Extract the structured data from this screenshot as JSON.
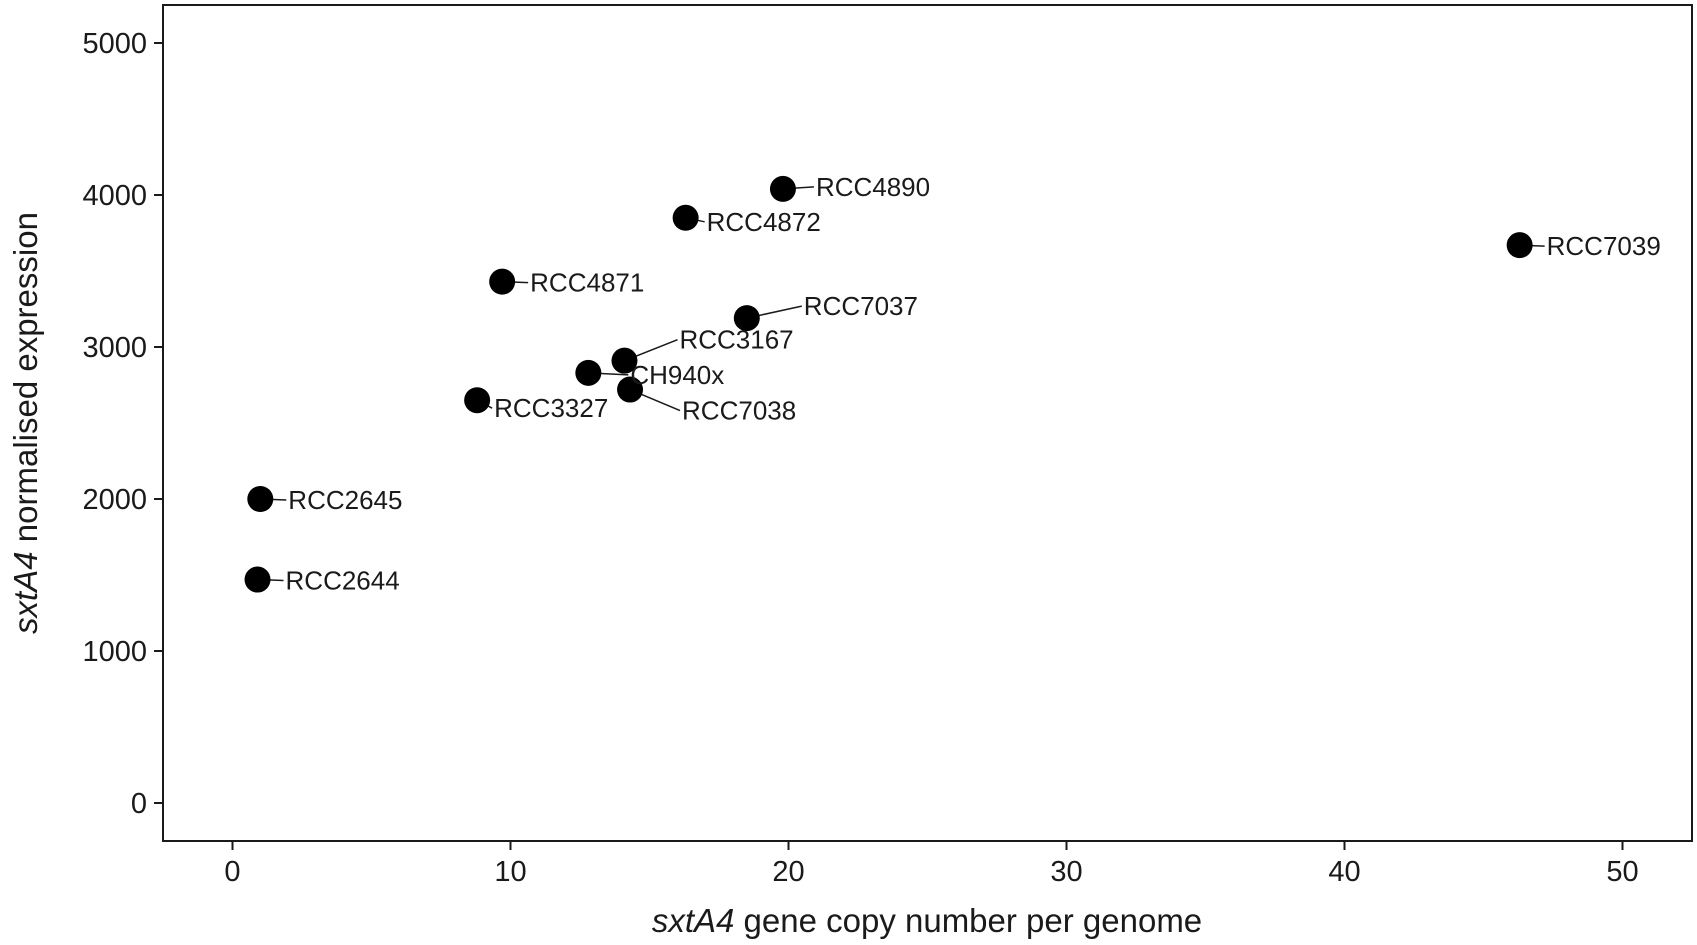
{
  "chart_data": {
    "type": "scatter",
    "title": "",
    "xlabel_italic": "sxtA4",
    "xlabel_rest": " gene copy number per genome",
    "ylabel_italic": "sxtA4",
    "ylabel_rest": " normalised expression",
    "xlim": [
      -2.5,
      52.5
    ],
    "ylim": [
      -250,
      5250
    ],
    "xticks": [
      0,
      10,
      20,
      30,
      40,
      50
    ],
    "yticks": [
      0,
      1000,
      2000,
      3000,
      4000,
      5000
    ],
    "grid": false,
    "points": [
      {
        "label": "RCC2644",
        "x": 0.9,
        "y": 1470
      },
      {
        "label": "RCC2645",
        "x": 1.0,
        "y": 2000
      },
      {
        "label": "RCC3327",
        "x": 8.8,
        "y": 2650
      },
      {
        "label": "RCC4871",
        "x": 9.7,
        "y": 3430
      },
      {
        "label": "CH940x",
        "x": 12.8,
        "y": 2830
      },
      {
        "label": "RCC3167",
        "x": 14.1,
        "y": 2910
      },
      {
        "label": "RCC7038",
        "x": 14.3,
        "y": 2720
      },
      {
        "label": "RCC4872",
        "x": 16.3,
        "y": 3850
      },
      {
        "label": "RCC7037",
        "x": 18.5,
        "y": 3190
      },
      {
        "label": "RCC4890",
        "x": 19.8,
        "y": 4040
      },
      {
        "label": "RCC7039",
        "x": 46.3,
        "y": 3670
      }
    ]
  }
}
